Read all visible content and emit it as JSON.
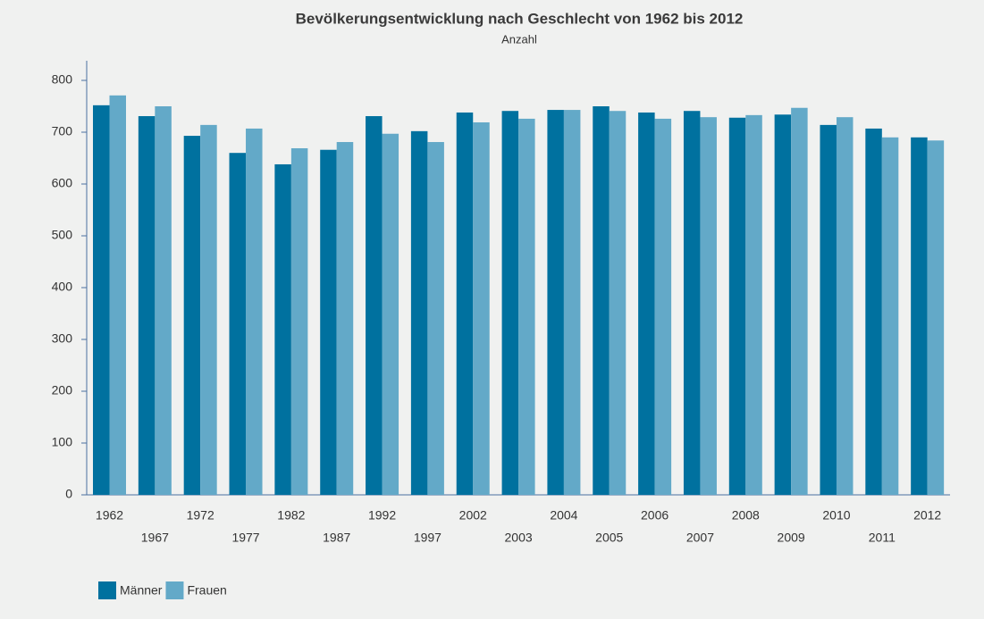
{
  "chart_data": {
    "type": "bar",
    "title": "Bevölkerungsentwicklung nach Geschlecht von 1962 bis 2012",
    "subtitle": "Anzahl",
    "categories": [
      "1962",
      "1967",
      "1972",
      "1977",
      "1982",
      "1987",
      "1992",
      "1997",
      "2002",
      "2003",
      "2004",
      "2005",
      "2006",
      "2007",
      "2008",
      "2009",
      "2010",
      "2011",
      "2012"
    ],
    "series": [
      {
        "name": "Männer",
        "color": "#00719f",
        "values": [
          752,
          731,
          693,
          660,
          638,
          666,
          731,
          702,
          738,
          741,
          743,
          750,
          738,
          741,
          728,
          734,
          714,
          707,
          690
        ]
      },
      {
        "name": "Frauen",
        "color": "#63a9c8",
        "values": [
          771,
          750,
          714,
          707,
          669,
          681,
          697,
          681,
          719,
          726,
          743,
          741,
          726,
          729,
          733,
          747,
          729,
          690,
          684
        ]
      }
    ],
    "ylim": [
      0,
      800
    ],
    "yticks": [
      0,
      100,
      200,
      300,
      400,
      500,
      600,
      700,
      800
    ],
    "grid": false,
    "legend": "bottom-left"
  }
}
